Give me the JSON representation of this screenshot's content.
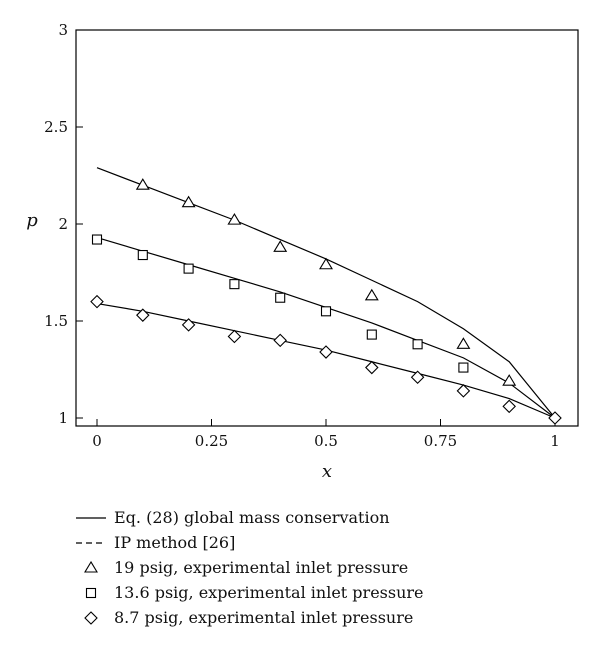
{
  "chart_data": {
    "type": "line",
    "xlabel": "x",
    "ylabel": "p",
    "xlim": [
      0,
      1
    ],
    "ylim": [
      1,
      3
    ],
    "xticks": [
      {
        "value": 0,
        "label": "0"
      },
      {
        "value": 0.25,
        "label": "0.25"
      },
      {
        "value": 0.5,
        "label": "0.5"
      },
      {
        "value": 0.75,
        "label": "0.75"
      },
      {
        "value": 1,
        "label": "1"
      }
    ],
    "yticks": [
      {
        "value": 1,
        "label": "1"
      },
      {
        "value": 1.5,
        "label": "1.5"
      },
      {
        "value": 2,
        "label": "2"
      },
      {
        "value": 2.5,
        "label": "2.5"
      },
      {
        "value": 3,
        "label": "3"
      }
    ],
    "grid": false,
    "legend_position": "below",
    "series": [
      {
        "name": "Eq. (28) global mass conservation",
        "kind": "line",
        "style": "solid",
        "color": "#000000",
        "x": [
          0,
          0.1,
          0.2,
          0.3,
          0.4,
          0.5,
          0.6,
          0.7,
          0.8,
          0.9,
          1.0
        ],
        "y": [
          2.29,
          2.2,
          2.11,
          2.02,
          1.92,
          1.82,
          1.71,
          1.6,
          1.46,
          1.29,
          1.0
        ]
      },
      {
        "name": "",
        "kind": "line",
        "style": "solid",
        "color": "#000000",
        "x": [
          0,
          0.1,
          0.2,
          0.3,
          0.4,
          0.5,
          0.6,
          0.7,
          0.8,
          0.9,
          1.0
        ],
        "y": [
          1.93,
          1.86,
          1.79,
          1.72,
          1.65,
          1.57,
          1.49,
          1.4,
          1.31,
          1.18,
          1.0
        ]
      },
      {
        "name": "",
        "kind": "line",
        "style": "solid",
        "color": "#000000",
        "x": [
          0,
          0.1,
          0.2,
          0.3,
          0.4,
          0.5,
          0.6,
          0.7,
          0.8,
          0.9,
          1.0
        ],
        "y": [
          1.59,
          1.55,
          1.5,
          1.45,
          1.4,
          1.35,
          1.29,
          1.23,
          1.17,
          1.1,
          1.0
        ]
      },
      {
        "name": "IP method [26]",
        "kind": "line",
        "style": "dashed",
        "color": "#000000",
        "x": [],
        "y": []
      },
      {
        "name": "19 psig, experimental inlet pressure",
        "kind": "markers",
        "marker": "triangle",
        "x": [
          0.1,
          0.2,
          0.3,
          0.4,
          0.5,
          0.6,
          0.8,
          0.9
        ],
        "y": [
          2.2,
          2.11,
          2.02,
          1.88,
          1.79,
          1.63,
          1.38,
          1.19
        ]
      },
      {
        "name": "13.6 psig, experimental inlet pressure",
        "kind": "markers",
        "marker": "square",
        "x": [
          0,
          0.1,
          0.2,
          0.3,
          0.4,
          0.5,
          0.6,
          0.7,
          0.8
        ],
        "y": [
          1.92,
          1.84,
          1.77,
          1.69,
          1.62,
          1.55,
          1.43,
          1.38,
          1.26
        ]
      },
      {
        "name": "8.7 psig, experimental inlet pressure",
        "kind": "markers",
        "marker": "diamond",
        "x": [
          0,
          0.1,
          0.2,
          0.3,
          0.4,
          0.5,
          0.6,
          0.7,
          0.8,
          0.9,
          1.0
        ],
        "y": [
          1.6,
          1.53,
          1.48,
          1.42,
          1.4,
          1.34,
          1.26,
          1.21,
          1.14,
          1.06,
          1.0
        ]
      }
    ],
    "legend": [
      {
        "series_index": 0,
        "label": "Eq. (28) global mass conservation",
        "symbol": "solid-line"
      },
      {
        "series_index": 3,
        "label": "IP method [26]",
        "symbol": "dashed-line"
      },
      {
        "series_index": 4,
        "label": "19 psig, experimental inlet pressure",
        "symbol": "triangle"
      },
      {
        "series_index": 5,
        "label": "13.6 psig, experimental inlet pressure",
        "symbol": "square"
      },
      {
        "series_index": 6,
        "label": "8.7 psig, experimental inlet pressure",
        "symbol": "diamond"
      }
    ]
  }
}
